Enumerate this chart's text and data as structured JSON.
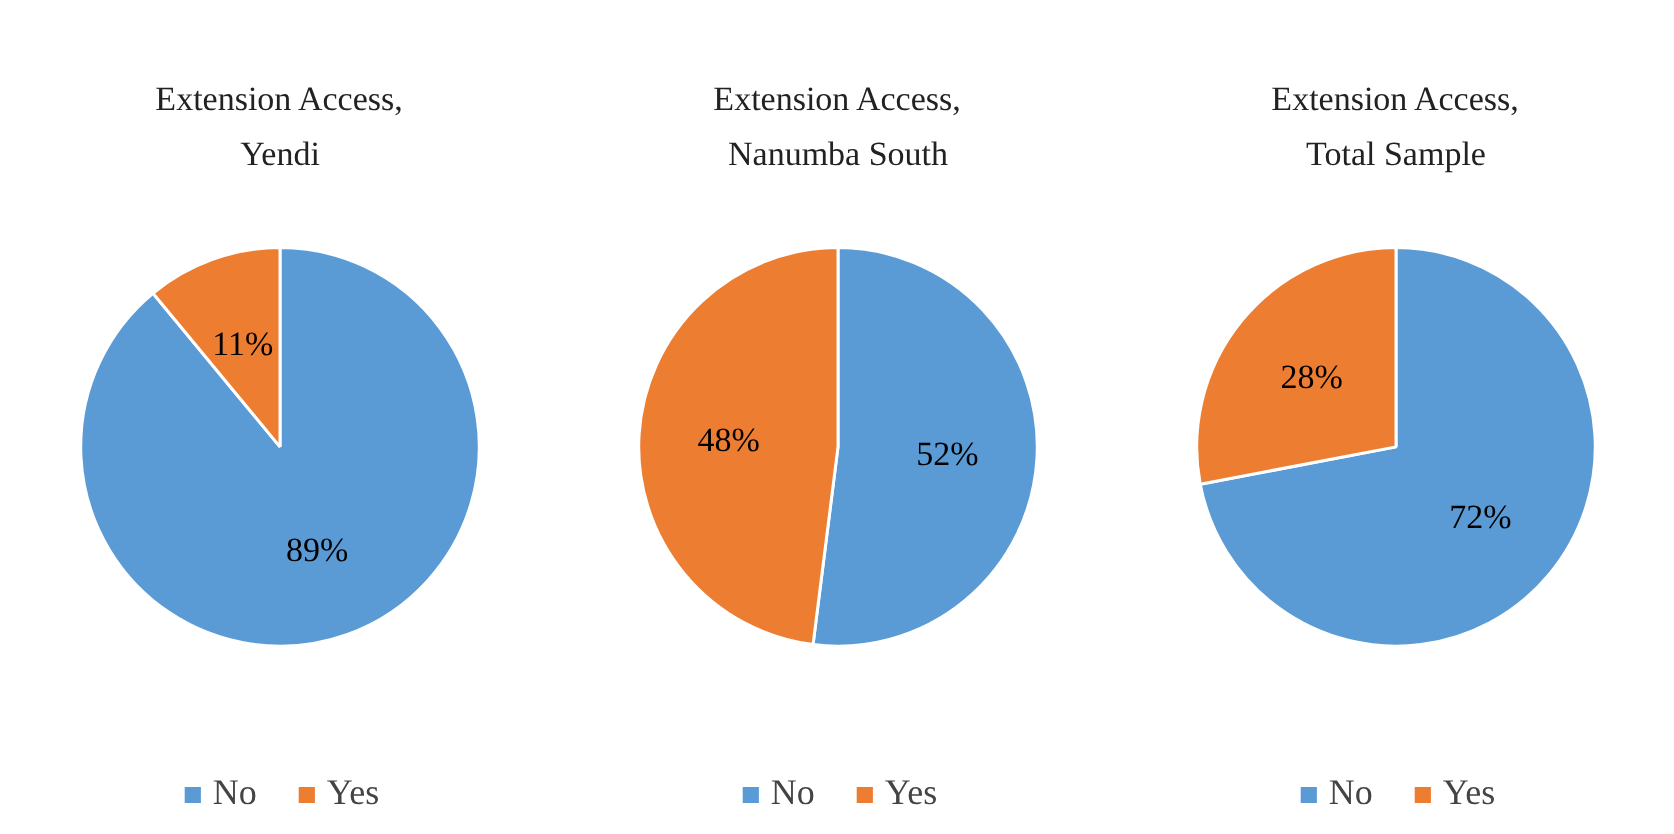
{
  "chart_data": [
    {
      "type": "pie",
      "title": "Extension Access, Yendi",
      "categories": [
        "No",
        "Yes"
      ],
      "values": [
        89,
        11
      ],
      "colors": [
        "#5b9bd5",
        "#ed7d31"
      ],
      "value_labels": [
        "89%",
        "11%"
      ],
      "legend": "bottom"
    },
    {
      "type": "pie",
      "title": "Extension Access, Nanumba South",
      "categories": [
        "No",
        "Yes"
      ],
      "values": [
        52,
        48
      ],
      "colors": [
        "#5b9bd5",
        "#ed7d31"
      ],
      "value_labels": [
        "52%",
        "48%"
      ],
      "legend": "bottom"
    },
    {
      "type": "pie",
      "title": "Extension Access, Total Sample",
      "categories": [
        "No",
        "Yes"
      ],
      "values": [
        72,
        28
      ],
      "colors": [
        "#5b9bd5",
        "#ed7d31"
      ],
      "value_labels": [
        "72%",
        "28%"
      ],
      "legend": "bottom"
    }
  ]
}
